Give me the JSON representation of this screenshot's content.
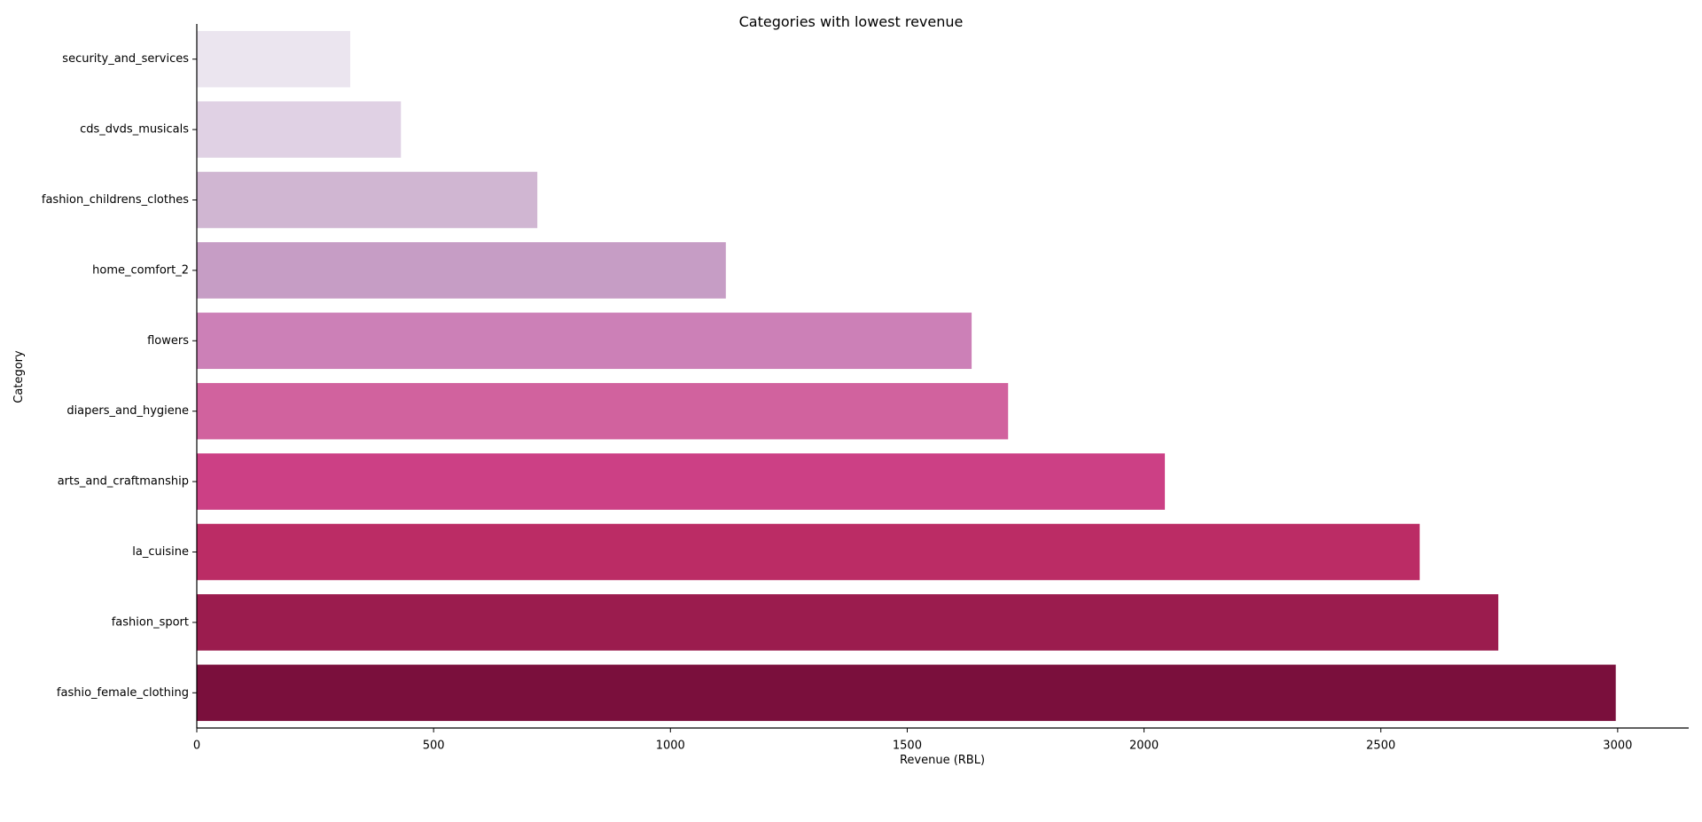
{
  "chart_data": {
    "type": "bar",
    "orientation": "horizontal",
    "title": "Categories with lowest revenue",
    "xlabel": "Revenue (RBL)",
    "ylabel": "Category",
    "xlim": [
      0,
      3150
    ],
    "xticks": [
      0,
      500,
      1000,
      1500,
      2000,
      2500,
      3000
    ],
    "grid": false,
    "categories": [
      "security_and_services",
      "cds_dvds_musicals",
      "fashion_childrens_clothes",
      "home_comfort_2",
      "flowers",
      "diapers_and_hygiene",
      "arts_and_craftmanship",
      "la_cuisine",
      "fashion_sport",
      "fashio_female_clothing"
    ],
    "values": [
      324,
      431,
      719,
      1117,
      1636,
      1713,
      2044,
      2582,
      2748,
      2996
    ],
    "colors": [
      "#ebe5ef",
      "#e0d1e4",
      "#d0b6d2",
      "#c69dc5",
      "#cc80b7",
      "#d1629e",
      "#cc4085",
      "#bb2c65",
      "#9b1c4e",
      "#7a0f3c"
    ]
  }
}
